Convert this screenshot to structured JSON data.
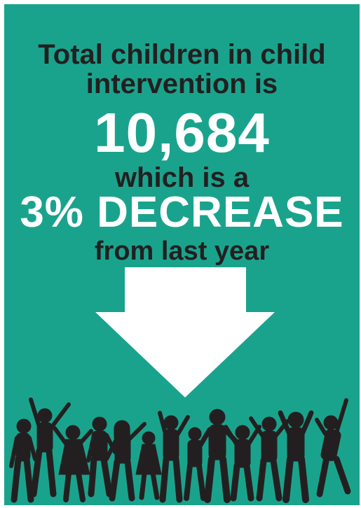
{
  "colors": {
    "background": "#1aa38c",
    "dark_text": "#231f20",
    "highlight": "#ffffff",
    "silhouette": "#231f20"
  },
  "headline": {
    "line1": "Total children in child",
    "line2": "intervention is",
    "total": "10,684",
    "line3": "which is a",
    "change": "3% DECREASE",
    "line4": "from last year"
  },
  "icons": {
    "arrow": "down-arrow-icon",
    "silhouettes": "children-silhouettes-icon"
  }
}
